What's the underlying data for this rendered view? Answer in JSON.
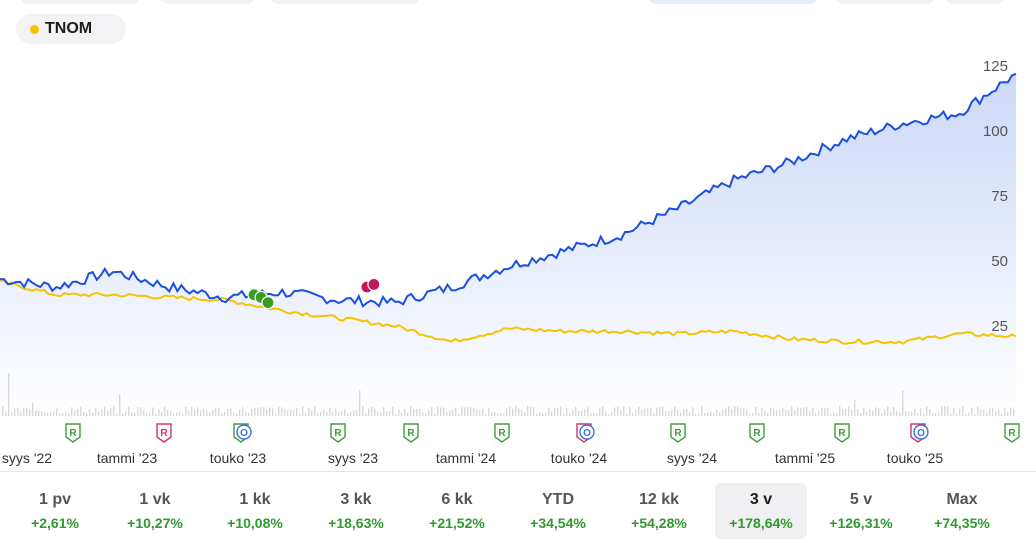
{
  "legend": {
    "label": "TNOM",
    "color": "#f5c400"
  },
  "colors": {
    "primary_line": "#1a4fe0",
    "secondary_line": "#f5c400",
    "positive": "#2f9a2f",
    "rating_R": "#3aa13a",
    "rating_R_neg": "#d6336c",
    "rating_O": "#3a70e0"
  },
  "x_labels": [
    "syys '22",
    "tammi '23",
    "touko '23",
    "syys '23",
    "tammi '24",
    "touko '24",
    "syys '24",
    "tammi '25",
    "touko '25"
  ],
  "periods": [
    {
      "label": "1 pv",
      "change": "+2,61%"
    },
    {
      "label": "1 vk",
      "change": "+10,27%"
    },
    {
      "label": "1 kk",
      "change": "+10,08%"
    },
    {
      "label": "3 kk",
      "change": "+18,63%"
    },
    {
      "label": "6 kk",
      "change": "+21,52%"
    },
    {
      "label": "YTD",
      "change": "+34,54%"
    },
    {
      "label": "12 kk",
      "change": "+54,28%"
    },
    {
      "label": "3 v",
      "change": "+178,64%",
      "active": true
    },
    {
      "label": "5 v",
      "change": "+126,31%"
    },
    {
      "label": "Max",
      "change": "+74,35%"
    }
  ],
  "markers": [
    {
      "type": "R",
      "tone": "green",
      "date": "2022-11"
    },
    {
      "type": "R",
      "tone": "red",
      "date": "2023-03"
    },
    {
      "type": "R+O",
      "tone": "green",
      "date": "2023-05"
    },
    {
      "type": "R",
      "tone": "green",
      "date": "2023-08"
    },
    {
      "type": "R",
      "tone": "green",
      "date": "2023-11"
    },
    {
      "type": "R",
      "tone": "green",
      "date": "2024-02"
    },
    {
      "type": "R+O",
      "tone": "red",
      "date": "2024-05"
    },
    {
      "type": "R",
      "tone": "green",
      "date": "2024-08"
    },
    {
      "type": "R",
      "tone": "green",
      "date": "2024-11"
    },
    {
      "type": "R",
      "tone": "green",
      "date": "2025-02"
    },
    {
      "type": "R+O",
      "tone": "red",
      "date": "2025-05"
    },
    {
      "type": "R",
      "tone": "green",
      "date": "2025-08"
    }
  ],
  "chart_data": {
    "type": "line",
    "y_ticks": [
      25,
      50,
      75,
      100,
      125
    ],
    "ylim": [
      0,
      130
    ],
    "x": [
      "2022-08",
      "2022-10",
      "2022-12",
      "2023-02",
      "2023-04",
      "2023-06",
      "2023-08",
      "2023-10",
      "2023-12",
      "2024-02",
      "2024-04",
      "2024-06",
      "2024-08",
      "2024-10",
      "2024-12",
      "2025-02",
      "2025-04",
      "2025-06",
      "2025-08"
    ],
    "series": [
      {
        "values": [
          43,
          40,
          46,
          40,
          36,
          38,
          35,
          34,
          40,
          48,
          54,
          60,
          70,
          81,
          88,
          97,
          103,
          107,
          122
        ]
      },
      {
        "values": [
          42,
          37,
          37,
          36,
          35,
          31,
          28,
          25,
          19,
          24,
          23,
          23,
          22,
          23,
          20,
          19,
          19,
          22,
          21
        ]
      }
    ],
    "events": [
      {
        "date": "2023-05",
        "kind": "dividend",
        "values": [
          37,
          36,
          34
        ]
      },
      {
        "date": "2023-09",
        "kind": "split",
        "values": [
          40,
          41
        ]
      }
    ]
  }
}
